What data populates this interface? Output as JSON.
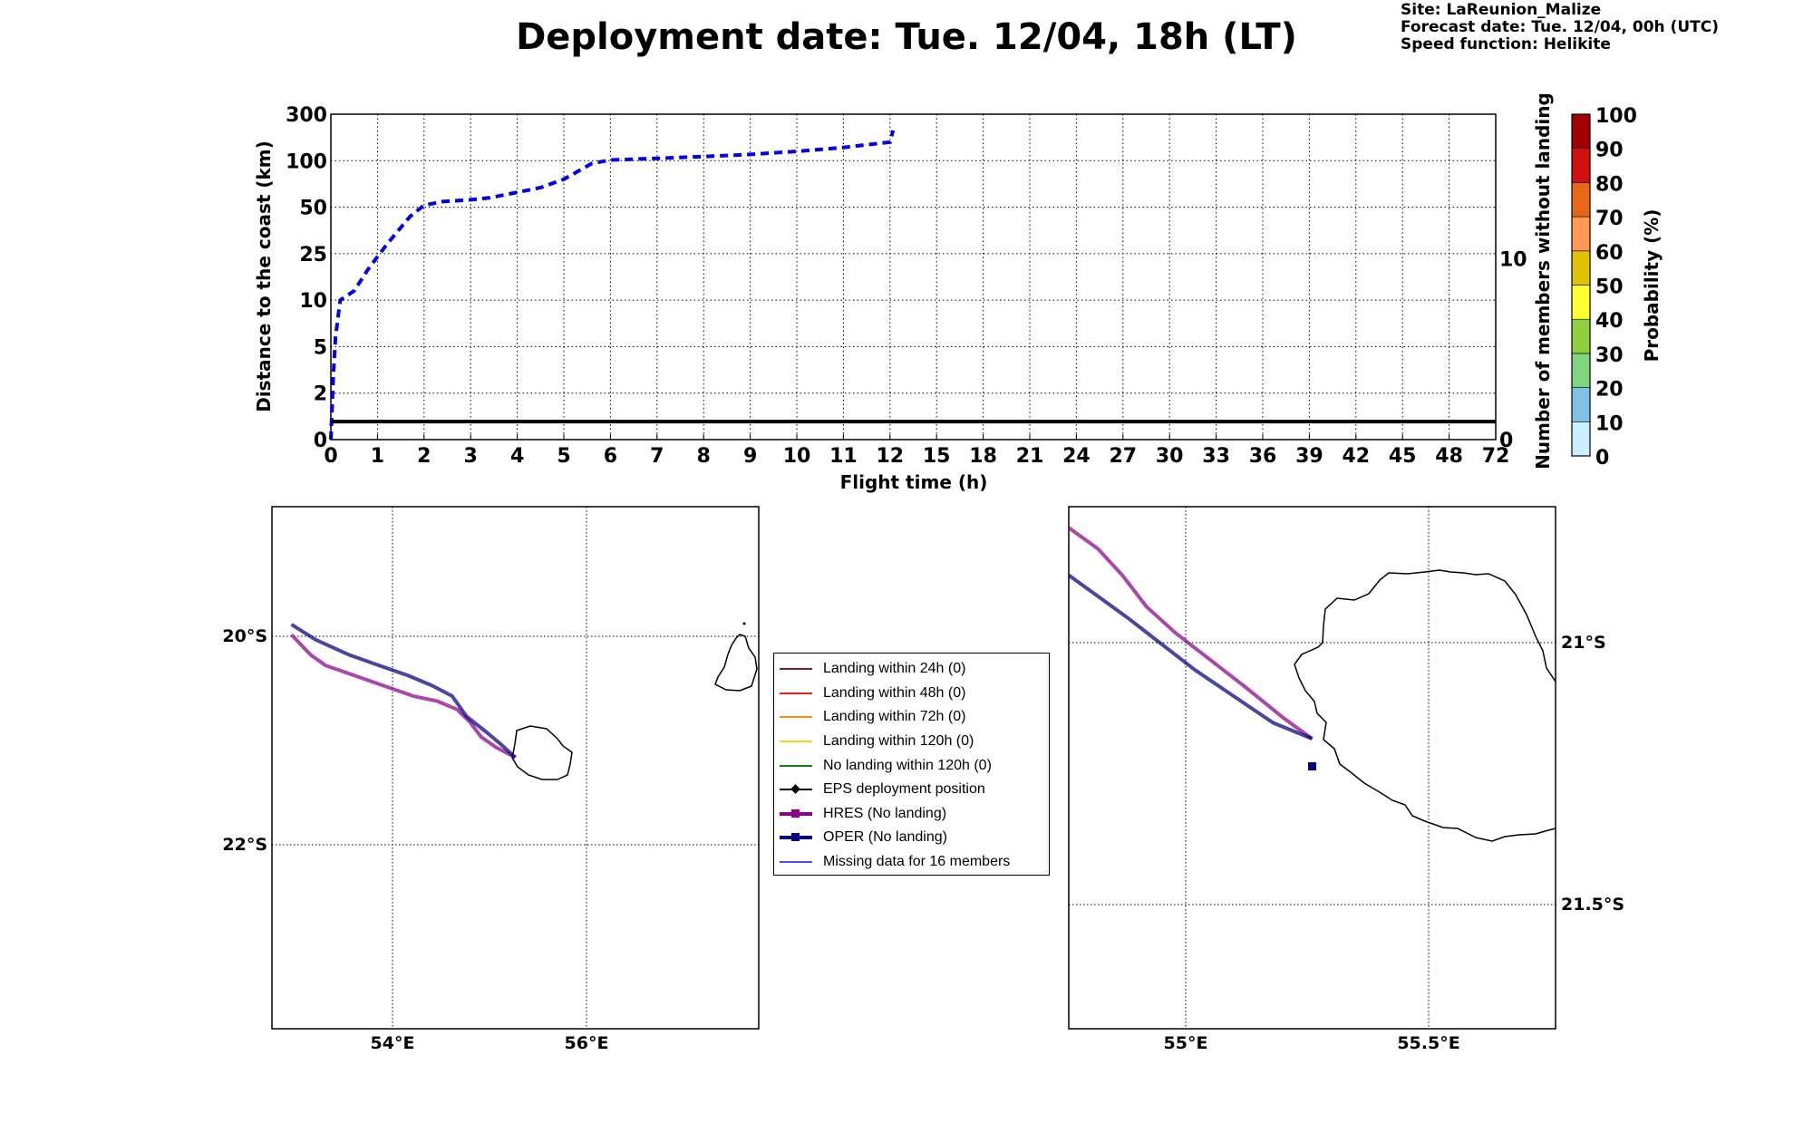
{
  "title": "Deployment date: Tue. 12/04, 18h (LT)",
  "info": {
    "site": "Site: LaReunion_Malize",
    "forecast": "Forecast date: Tue. 12/04, 00h (UTC)",
    "speed": "Speed function: Helikite"
  },
  "colors": {
    "distance_line": "#0000ee",
    "hres": "#8b008b",
    "oper": "#000080",
    "members_line": "#000000"
  },
  "colorbar": {
    "label": "Probability (%)",
    "ticks": [
      "0",
      "10",
      "20",
      "30",
      "40",
      "50",
      "60",
      "70",
      "80",
      "90",
      "100"
    ],
    "colors": [
      "#cceeff",
      "#7fc2e8",
      "#7fd67f",
      "#8fcf3f",
      "#ffff33",
      "#e0c000",
      "#ff9955",
      "#e8661a",
      "#d11010",
      "#a00000",
      "#5a0010"
    ]
  },
  "chart_data": [
    {
      "type": "line",
      "xlabel": "Flight time (h)",
      "ylabel": "Distance to the coast (km)",
      "y2label": "Number of members without landing",
      "x_ticks": [
        "0",
        "1",
        "2",
        "3",
        "4",
        "5",
        "6",
        "7",
        "8",
        "9",
        "10",
        "11",
        "12",
        "15",
        "18",
        "21",
        "24",
        "27",
        "30",
        "33",
        "36",
        "39",
        "42",
        "45",
        "48",
        "72"
      ],
      "y_ticks": [
        "0",
        "2",
        "5",
        "10",
        "25",
        "50",
        "100",
        "300"
      ],
      "y2_ticks": [
        "0",
        "10"
      ],
      "grid": true,
      "series": [
        {
          "style": "dashed",
          "x": [
            0,
            0.05,
            0.1,
            0.2,
            0.5,
            0.8,
            1.2,
            1.7,
            2.0,
            2.4,
            3.0,
            3.4,
            4.0,
            4.5,
            5.0,
            5.6,
            6.0,
            7.0,
            8.0,
            9.0,
            10.0,
            11.0,
            12.0,
            12.2
          ],
          "y": [
            0,
            3,
            6,
            10,
            13,
            20,
            30,
            45,
            52,
            56,
            58,
            60,
            66,
            71,
            80,
            97,
            103,
            110,
            118,
            127,
            140,
            157,
            180,
            230
          ]
        },
        {
          "style": "solid",
          "axis": "right",
          "x": [
            0,
            72
          ],
          "y": [
            1,
            1
          ]
        }
      ]
    },
    {
      "type": "map",
      "x_ticks": [
        "54°E",
        "56°E"
      ],
      "y_ticks": [
        "20°S",
        "22°S"
      ],
      "lon_range": [
        52.75,
        57.75
      ],
      "lat_range": [
        -23.9,
        -18.8
      ],
      "series": [
        {
          "name": "HRES (No landing)",
          "lon": [
            52.95,
            53.05,
            53.15,
            53.3,
            53.6,
            53.9,
            54.2,
            54.45,
            54.65,
            54.78,
            54.9,
            55.05,
            55.25
          ],
          "lat": [
            -20.05,
            -20.15,
            -20.25,
            -20.35,
            -20.45,
            -20.55,
            -20.65,
            -20.7,
            -20.78,
            -20.9,
            -21.05,
            -21.15,
            -21.25
          ]
        },
        {
          "name": "OPER (No landing)",
          "lon": [
            52.95,
            53.2,
            53.55,
            53.85,
            54.15,
            54.4,
            54.6,
            54.75,
            54.95,
            55.1,
            55.25
          ],
          "lat": [
            -19.95,
            -20.1,
            -20.25,
            -20.35,
            -20.45,
            -20.55,
            -20.65,
            -20.85,
            -21.0,
            -21.12,
            -21.25
          ]
        }
      ]
    },
    {
      "type": "map",
      "x_ticks": [
        "55°E",
        "55.5°E"
      ],
      "y_ticks": [
        "21°S",
        "21.5°S"
      ],
      "lon_range": [
        54.76,
        55.76
      ],
      "lat_range": [
        -21.74,
        -20.75
      ],
      "series": [
        {
          "name": "HRES (No landing)",
          "lon": [
            54.76,
            54.82,
            54.87,
            54.92,
            54.98,
            55.05,
            55.12,
            55.2,
            55.26
          ],
          "lat": [
            -20.79,
            -20.83,
            -20.88,
            -20.94,
            -20.99,
            -21.04,
            -21.09,
            -21.15,
            -21.19
          ]
        },
        {
          "name": "OPER (No landing)",
          "lon": [
            54.76,
            54.82,
            54.88,
            54.95,
            55.02,
            55.1,
            55.18,
            55.26
          ],
          "lat": [
            -20.88,
            -20.92,
            -20.96,
            -21.01,
            -21.06,
            -21.11,
            -21.16,
            -21.19
          ]
        }
      ]
    }
  ],
  "legend": [
    {
      "label": "Landing within 24h (0)",
      "color": "#8b1a1a",
      "marker": "none",
      "width": 2
    },
    {
      "label": "Landing within 48h (0)",
      "color": "#ee2222",
      "marker": "none",
      "width": 2
    },
    {
      "label": "Landing within 72h (0)",
      "color": "#ff8c1a",
      "marker": "none",
      "width": 2
    },
    {
      "label": "Landing within 120h (0)",
      "color": "#ffd21a",
      "marker": "none",
      "width": 2
    },
    {
      "label": "No landing within 120h (0)",
      "color": "#1a7a1a",
      "marker": "none",
      "width": 2
    },
    {
      "label": "EPS deployment position",
      "color": "#000000",
      "marker": "diamond",
      "width": 2
    },
    {
      "label": "HRES (No landing)",
      "color": "#8b008b",
      "marker": "square",
      "width": 4
    },
    {
      "label": "OPER (No landing)",
      "color": "#000080",
      "marker": "square",
      "width": 4
    },
    {
      "label": "Missing data for 16 members",
      "color": "#4a4aff",
      "marker": "none",
      "width": 2
    }
  ]
}
